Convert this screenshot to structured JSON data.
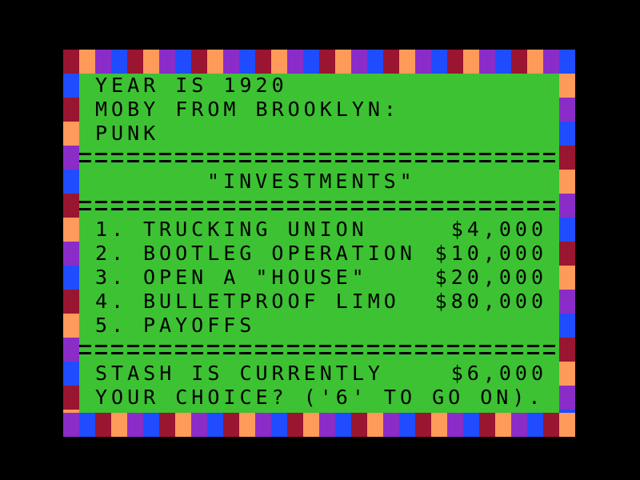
{
  "colors": {
    "background": "#000000",
    "playfield": "#3cc232",
    "text": "#000000",
    "border_palette": [
      "#9a1530",
      "#ff9a5a",
      "#8a2cc8",
      "#1f4cff"
    ]
  },
  "header": {
    "year_line": "YEAR IS 1920",
    "player_line": "MOBY FROM BROOKLYN:",
    "rank_line": "PUNK"
  },
  "section": {
    "title": "\"INVESTMENTS\""
  },
  "investments": [
    {
      "number": "1.",
      "name": "TRUCKING UNION",
      "price": "$4,000"
    },
    {
      "number": "2.",
      "name": "BOOTLEG OPERATION",
      "price": "$10,000"
    },
    {
      "number": "3.",
      "name": "OPEN A \"HOUSE\"",
      "price": "$20,000"
    },
    {
      "number": "4.",
      "name": "BULLETPROOF LIMO",
      "price": "$80,000"
    },
    {
      "number": "5.",
      "name": "PAYOFFS",
      "price": ""
    }
  ],
  "status": {
    "stash_label": "STASH IS CURRENTLY",
    "stash_value": "$6,000",
    "prompt": "YOUR CHOICE? ('6' TO GO ON)."
  }
}
